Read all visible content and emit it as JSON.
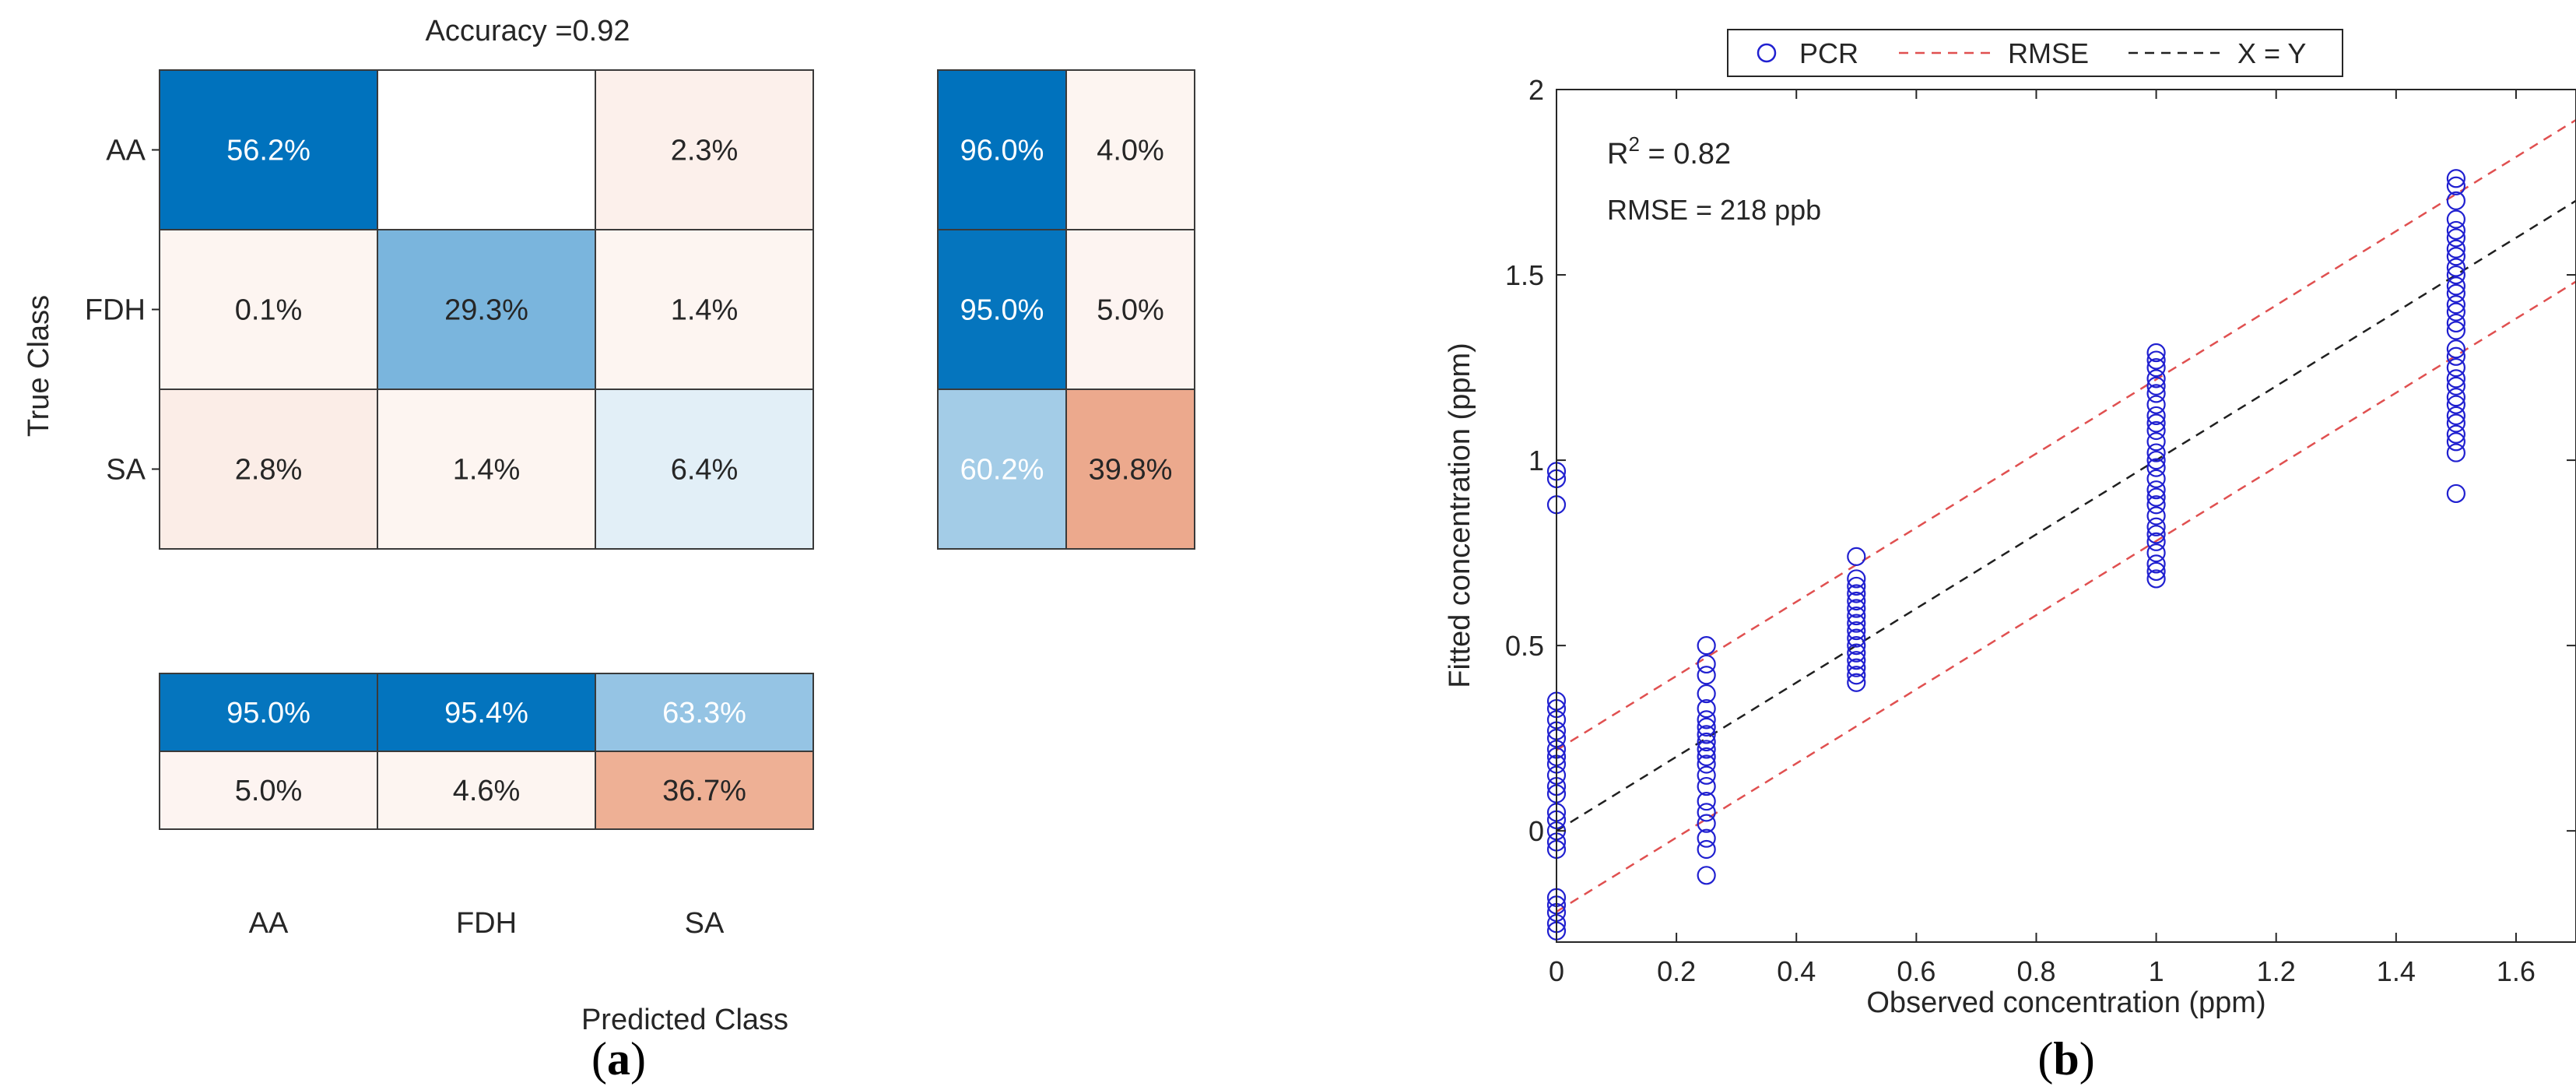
{
  "chart_data": [
    {
      "type": "heatmap",
      "subtype": "confusion-matrix",
      "panel_label": {
        "open": "(",
        "letter": "a",
        "close": ")"
      },
      "title": "Accuracy =0.92",
      "xlabel": "Predicted Class",
      "ylabel": "True Class",
      "classes": [
        "AA",
        "FDH",
        "SA"
      ],
      "matrix": [
        [
          "56.2%",
          "",
          "2.3%"
        ],
        [
          "0.1%",
          "29.3%",
          "1.4%"
        ],
        [
          "2.8%",
          "1.4%",
          "6.4%"
        ]
      ],
      "matrix_values": [
        [
          56.2,
          null,
          2.3
        ],
        [
          0.1,
          29.3,
          1.4
        ],
        [
          2.8,
          1.4,
          6.4
        ]
      ],
      "row_summary": [
        [
          "96.0%",
          "4.0%"
        ],
        [
          "95.0%",
          "5.0%"
        ],
        [
          "60.2%",
          "39.8%"
        ]
      ],
      "row_summary_values": [
        [
          96.0,
          4.0
        ],
        [
          95.0,
          5.0
        ],
        [
          60.2,
          39.8
        ]
      ],
      "column_summary": [
        [
          "95.0%",
          "95.4%",
          "63.3%"
        ],
        [
          "5.0%",
          "4.6%",
          "36.7%"
        ]
      ],
      "column_summary_values": [
        [
          95.0,
          95.4,
          63.3
        ],
        [
          5.0,
          4.6,
          36.7
        ]
      ]
    },
    {
      "type": "scatter",
      "panel_label": {
        "open": "(",
        "letter": "b",
        "close": ")"
      },
      "xlabel": "Observed concentration (ppm)",
      "ylabel": "Fitted concentration (ppm)",
      "xlim": [
        0,
        1.7
      ],
      "ylim": [
        -0.3,
        2
      ],
      "xticks": [
        0,
        0.2,
        0.4,
        0.6,
        0.8,
        1,
        1.2,
        1.4,
        1.6
      ],
      "xtick_labels": [
        "0",
        "0.2",
        "0.4",
        "0.6",
        "0.8",
        "1",
        "1.2",
        "1.4",
        "1.6"
      ],
      "yticks": [
        0,
        0.5,
        1,
        1.5,
        2
      ],
      "ytick_labels": [
        "0",
        "0.5",
        "1",
        "1.5",
        "2"
      ],
      "legend": [
        "PCR",
        "RMSE",
        "X = Y"
      ],
      "legend_position": "top-center-outside",
      "annotations": {
        "r2_prefix": "R",
        "r2_sup": "2",
        "r2_suffix": " = 0.82",
        "rmse": "RMSE = 218 ppb"
      },
      "lines": {
        "x_eq_y": {
          "slope": 1,
          "intercept": 0
        },
        "rmse_upper": {
          "slope": 1,
          "intercept": 0.218
        },
        "rmse_lower": {
          "slope": 1,
          "intercept": -0.218
        }
      },
      "series": [
        {
          "name": "PCR",
          "x": 0,
          "y": [
            0.97,
            0.95,
            0.88,
            0.35,
            0.33,
            0.3,
            0.27,
            0.25,
            0.22,
            0.2,
            0.18,
            0.15,
            0.12,
            0.1,
            0.05,
            0.03,
            0.0,
            -0.03,
            -0.05,
            -0.18,
            -0.2,
            -0.22,
            -0.25,
            -0.27
          ]
        },
        {
          "name": "PCR",
          "x": 0.25,
          "y": [
            0.5,
            0.45,
            0.42,
            0.37,
            0.33,
            0.3,
            0.28,
            0.26,
            0.24,
            0.22,
            0.2,
            0.18,
            0.15,
            0.12,
            0.08,
            0.05,
            0.02,
            -0.02,
            -0.05,
            -0.12
          ]
        },
        {
          "name": "PCR",
          "x": 0.5,
          "y": [
            0.74,
            0.68,
            0.66,
            0.64,
            0.62,
            0.6,
            0.58,
            0.56,
            0.54,
            0.52,
            0.5,
            0.48,
            0.46,
            0.44,
            0.42,
            0.4
          ]
        },
        {
          "name": "PCR",
          "x": 1.0,
          "y": [
            1.29,
            1.27,
            1.25,
            1.22,
            1.2,
            1.18,
            1.15,
            1.12,
            1.1,
            1.08,
            1.05,
            1.02,
            1.0,
            0.98,
            0.95,
            0.92,
            0.9,
            0.88,
            0.85,
            0.82,
            0.8,
            0.78,
            0.75,
            0.72,
            0.7,
            0.68
          ]
        },
        {
          "name": "PCR",
          "x": 1.5,
          "y": [
            1.76,
            1.74,
            1.7,
            1.65,
            1.62,
            1.6,
            1.57,
            1.55,
            1.52,
            1.5,
            1.47,
            1.45,
            1.42,
            1.4,
            1.37,
            1.35,
            1.3,
            1.28,
            1.25,
            1.22,
            1.2,
            1.17,
            1.15,
            1.12,
            1.1,
            1.07,
            1.05,
            1.02,
            0.91
          ]
        }
      ]
    }
  ]
}
